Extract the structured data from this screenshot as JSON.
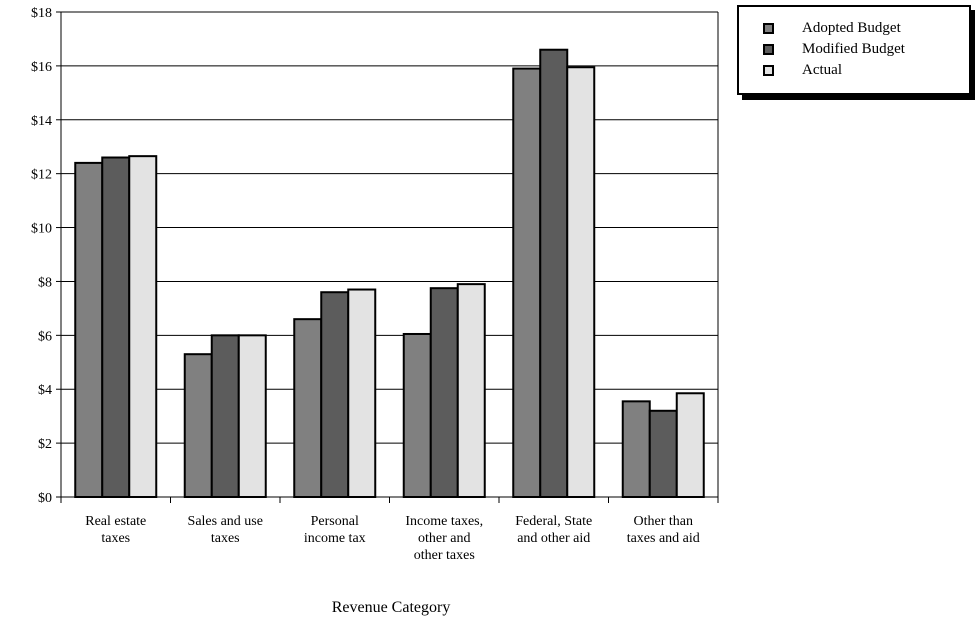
{
  "chart_data": {
    "type": "bar",
    "title": "",
    "xlabel": "Revenue Category",
    "ylabel": "",
    "ylim": [
      0,
      18
    ],
    "yticks": [
      0,
      2,
      4,
      6,
      8,
      10,
      12,
      14,
      16,
      18
    ],
    "ytick_labels": [
      "$0",
      "$2",
      "$4",
      "$6",
      "$8",
      "$10",
      "$12",
      "$14",
      "$16",
      "$18"
    ],
    "grid": true,
    "legend_position": "top-right",
    "categories": [
      [
        "Real estate",
        "taxes"
      ],
      [
        "Sales and use",
        "taxes"
      ],
      [
        "Personal",
        "income tax"
      ],
      [
        "Income taxes,",
        "other and",
        "other taxes"
      ],
      [
        "Federal, State",
        "and other aid"
      ],
      [
        "Other than",
        "taxes and aid"
      ]
    ],
    "series": [
      {
        "name": "Adopted Budget",
        "color": "#808080",
        "values": [
          12.4,
          5.3,
          6.6,
          6.05,
          15.9,
          3.55
        ]
      },
      {
        "name": "Modified Budget",
        "color": "#5c5c5c",
        "values": [
          12.6,
          6.0,
          7.6,
          7.75,
          16.6,
          3.2
        ]
      },
      {
        "name": "Actual",
        "color": "#e3e3e3",
        "values": [
          12.65,
          6.0,
          7.7,
          7.9,
          15.95,
          3.85
        ]
      }
    ]
  }
}
